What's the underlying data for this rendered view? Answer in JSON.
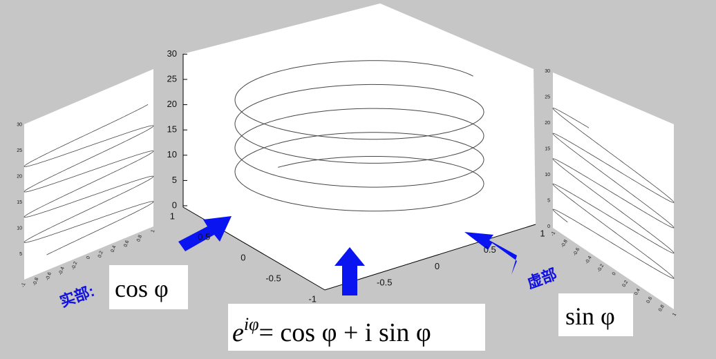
{
  "main_plot": {
    "z_ticks": [
      "0",
      "5",
      "10",
      "15",
      "20",
      "25",
      "30"
    ],
    "x_ticks": [
      "1",
      "0.5",
      "0",
      "-0.5",
      "-1"
    ],
    "y_ticks": [
      "-0.5",
      "0",
      "0.5",
      "1"
    ]
  },
  "left_panel": {
    "z_ticks": [
      "5",
      "10",
      "15",
      "20",
      "25",
      "30"
    ],
    "x_ticks": [
      "-1",
      "-0.8",
      "-0.6",
      "-0.4",
      "-0.2",
      "0",
      "0.2",
      "0.4",
      "0.6",
      "0.8",
      "1"
    ]
  },
  "right_panel": {
    "z_ticks": [
      "0",
      "5",
      "10",
      "15",
      "20",
      "25",
      "30"
    ],
    "x_ticks": [
      "-1",
      "-0.8",
      "-0.6",
      "-0.4",
      "-0.2",
      "0",
      "0.2",
      "0.4",
      "0.6",
      "0.8",
      "1"
    ]
  },
  "labels": {
    "real_part": "实部:",
    "cos": "cos φ",
    "imag_part": "虚部",
    "sin": "sin φ",
    "formula_base": "e",
    "formula_exp": "iφ",
    "formula_rest": "= cos φ + i sin φ"
  }
}
